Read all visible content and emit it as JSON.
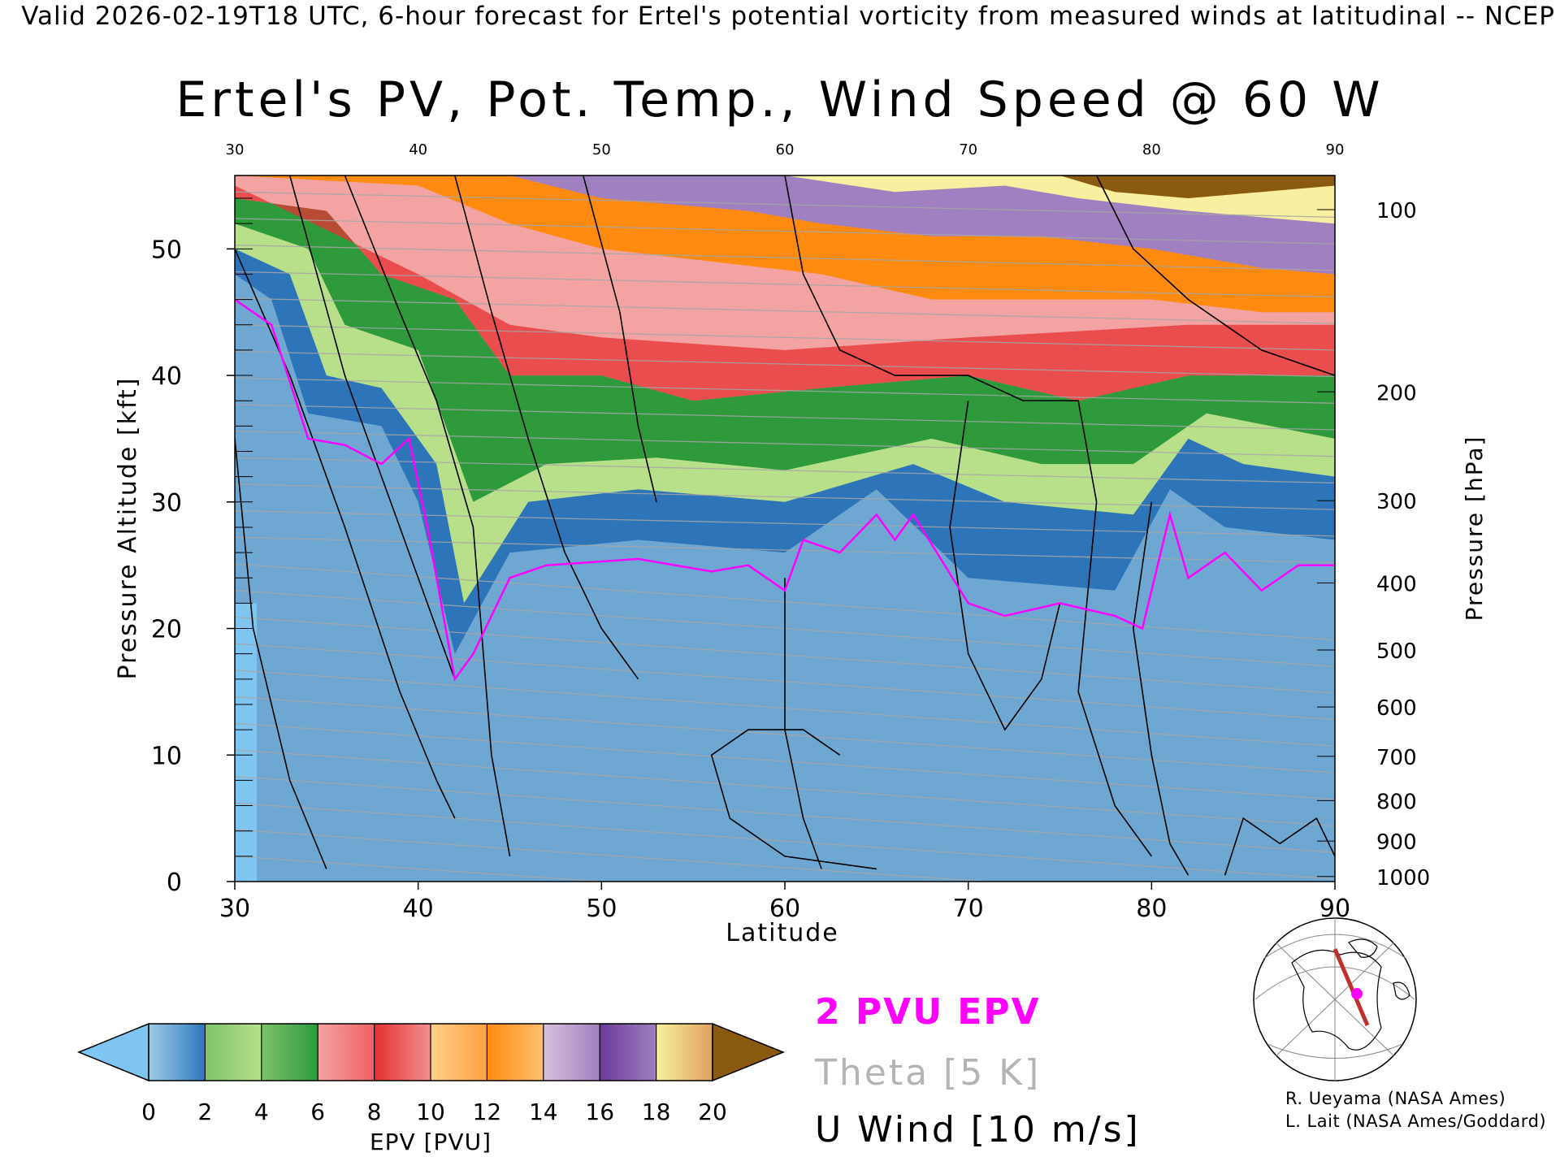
{
  "header": "Valid 2026-02-19T18 UTC, 6-hour forecast for Ertel's potential vorticity from measured winds at latitudinal -- NCEP",
  "chart_data": {
    "type": "heatmap",
    "title": "Ertel's PV, Pot. Temp., Wind Speed @ 60 W",
    "xlabel": "Latitude",
    "ylabel": "Pressure Altitude [kft]",
    "y2label": "Pressure [hPa]",
    "xlim": [
      30,
      90
    ],
    "ylim": [
      0,
      55.8
    ],
    "x_ticks": [
      30,
      40,
      50,
      60,
      70,
      80,
      90
    ],
    "top_x_ticks": [
      30,
      40,
      50,
      60,
      70,
      80,
      90
    ],
    "y_ticks": [
      0,
      10,
      20,
      30,
      40,
      50
    ],
    "pressure_ticks": [
      {
        "label": "100",
        "kft": 53.1
      },
      {
        "label": "200",
        "kft": 38.7
      },
      {
        "label": "300",
        "kft": 30.1
      },
      {
        "label": "400",
        "kft": 23.6
      },
      {
        "label": "500",
        "kft": 18.3
      },
      {
        "label": "600",
        "kft": 13.8
      },
      {
        "label": "700",
        "kft": 9.9
      },
      {
        "label": "800",
        "kft": 6.4
      },
      {
        "label": "900",
        "kft": 3.2
      },
      {
        "label": "1000",
        "kft": 0.4
      }
    ],
    "tropopause_2pvu": [
      {
        "lat": 30,
        "kft": 46
      },
      {
        "lat": 32,
        "kft": 44
      },
      {
        "lat": 34,
        "kft": 35
      },
      {
        "lat": 36,
        "kft": 34.5
      },
      {
        "lat": 38,
        "kft": 33
      },
      {
        "lat": 39.5,
        "kft": 35
      },
      {
        "lat": 40.5,
        "kft": 28
      },
      {
        "lat": 42,
        "kft": 16
      },
      {
        "lat": 43,
        "kft": 18
      },
      {
        "lat": 45,
        "kft": 24
      },
      {
        "lat": 47,
        "kft": 25
      },
      {
        "lat": 52,
        "kft": 25.5
      },
      {
        "lat": 56,
        "kft": 24.5
      },
      {
        "lat": 58,
        "kft": 25
      },
      {
        "lat": 60,
        "kft": 23
      },
      {
        "lat": 61,
        "kft": 27
      },
      {
        "lat": 63,
        "kft": 26
      },
      {
        "lat": 65,
        "kft": 29
      },
      {
        "lat": 66,
        "kft": 27
      },
      {
        "lat": 67,
        "kft": 29
      },
      {
        "lat": 70,
        "kft": 22
      },
      {
        "lat": 72,
        "kft": 21
      },
      {
        "lat": 75,
        "kft": 22
      },
      {
        "lat": 78,
        "kft": 21
      },
      {
        "lat": 79.5,
        "kft": 20
      },
      {
        "lat": 81,
        "kft": 29
      },
      {
        "lat": 82,
        "kft": 24
      },
      {
        "lat": 84,
        "kft": 26
      },
      {
        "lat": 86,
        "kft": 23
      },
      {
        "lat": 88,
        "kft": 25
      },
      {
        "lat": 90,
        "kft": 25
      }
    ],
    "epv_layers": [
      {
        "epv": 2,
        "points": [
          [
            30,
            48
          ],
          [
            32,
            46
          ],
          [
            34,
            37
          ],
          [
            38,
            36
          ],
          [
            40,
            30
          ],
          [
            42,
            18
          ],
          [
            45,
            26
          ],
          [
            52,
            27
          ],
          [
            60,
            26
          ],
          [
            65,
            31
          ],
          [
            70,
            24
          ],
          [
            78,
            23
          ],
          [
            81,
            31
          ],
          [
            84,
            28
          ],
          [
            90,
            27
          ]
        ]
      },
      {
        "epv": 4,
        "points": [
          [
            30,
            50
          ],
          [
            33,
            48
          ],
          [
            35,
            40
          ],
          [
            38,
            39
          ],
          [
            41,
            33
          ],
          [
            42.5,
            22
          ],
          [
            46,
            30
          ],
          [
            52,
            31
          ],
          [
            60,
            30
          ],
          [
            67,
            33
          ],
          [
            72,
            30
          ],
          [
            79,
            29
          ],
          [
            82,
            35
          ],
          [
            85,
            33
          ],
          [
            90,
            32
          ]
        ]
      },
      {
        "epv": 6,
        "points": [
          [
            30,
            52
          ],
          [
            34,
            50
          ],
          [
            36,
            44
          ],
          [
            40,
            42
          ],
          [
            43,
            30
          ],
          [
            47,
            33
          ],
          [
            53,
            33.5
          ],
          [
            60,
            32.5
          ],
          [
            68,
            35
          ],
          [
            74,
            33
          ],
          [
            79,
            33
          ],
          [
            83,
            37
          ],
          [
            90,
            35
          ]
        ]
      },
      {
        "epv": 8,
        "points": [
          [
            30,
            54
          ],
          [
            35,
            53
          ],
          [
            38,
            48
          ],
          [
            42,
            46
          ],
          [
            45,
            40
          ],
          [
            50,
            40
          ],
          [
            55,
            38
          ],
          [
            62,
            39
          ],
          [
            70,
            40
          ],
          [
            76,
            38
          ],
          [
            82,
            40
          ],
          [
            90,
            40
          ]
        ]
      },
      {
        "epv": 12,
        "points": [
          [
            30,
            55.8
          ],
          [
            40,
            55
          ],
          [
            45,
            52
          ],
          [
            50,
            50
          ],
          [
            56,
            49
          ],
          [
            62,
            48
          ],
          [
            68,
            46
          ],
          [
            74,
            46
          ],
          [
            80,
            46
          ],
          [
            86,
            45
          ],
          [
            90,
            45
          ]
        ]
      },
      {
        "epv": 14,
        "points": [
          [
            30,
            55.8
          ],
          [
            45,
            55.8
          ],
          [
            50,
            54
          ],
          [
            58,
            53
          ],
          [
            62,
            52
          ],
          [
            68,
            51
          ],
          [
            74,
            51
          ],
          [
            80,
            50
          ],
          [
            86,
            48.5
          ],
          [
            90,
            48
          ]
        ]
      },
      {
        "epv": 18,
        "points": [
          [
            30,
            55.8
          ],
          [
            60,
            55.8
          ],
          [
            66,
            54.5
          ],
          [
            72,
            55
          ],
          [
            76,
            54
          ],
          [
            82,
            53
          ],
          [
            86,
            52.5
          ],
          [
            90,
            52
          ]
        ]
      },
      {
        "epv": 20,
        "points": [
          [
            30,
            55.8
          ],
          [
            75,
            55.8
          ],
          [
            78,
            54.5
          ],
          [
            82,
            54
          ],
          [
            86,
            54.5
          ],
          [
            90,
            55
          ]
        ]
      }
    ],
    "wind_contours_10ms": [
      {
        "points": [
          [
            30,
            35
          ],
          [
            31,
            20
          ],
          [
            33,
            8
          ],
          [
            35,
            1
          ]
        ]
      },
      {
        "points": [
          [
            30,
            50
          ],
          [
            33,
            40
          ],
          [
            36,
            28
          ],
          [
            39,
            15
          ],
          [
            41,
            8
          ],
          [
            42,
            5
          ]
        ]
      },
      {
        "points": [
          [
            33,
            55.8
          ],
          [
            36,
            40
          ],
          [
            39,
            28
          ],
          [
            41,
            20
          ],
          [
            42,
            16
          ]
        ]
      },
      {
        "points": [
          [
            36,
            55.8
          ],
          [
            39,
            45
          ],
          [
            41,
            38
          ],
          [
            43,
            28
          ],
          [
            44,
            10
          ],
          [
            45,
            2
          ]
        ]
      },
      {
        "points": [
          [
            42,
            55.8
          ],
          [
            44,
            45
          ],
          [
            46,
            35
          ],
          [
            48,
            26
          ],
          [
            50,
            20
          ],
          [
            52,
            16
          ]
        ]
      },
      {
        "points": [
          [
            49,
            55.8
          ],
          [
            51,
            45
          ],
          [
            52,
            36
          ],
          [
            53,
            30
          ]
        ]
      },
      {
        "points": [
          [
            60,
            55.8
          ],
          [
            61,
            48
          ],
          [
            63,
            42
          ],
          [
            66,
            40
          ],
          [
            70,
            40
          ],
          [
            73,
            38
          ],
          [
            76,
            38
          ],
          [
            77,
            30
          ],
          [
            76,
            15
          ],
          [
            78,
            6
          ],
          [
            80,
            2
          ]
        ]
      },
      {
        "points": [
          [
            70,
            38
          ],
          [
            69,
            28
          ],
          [
            70,
            18
          ],
          [
            72,
            12
          ],
          [
            74,
            16
          ],
          [
            75,
            22
          ]
        ]
      },
      {
        "points": [
          [
            60,
            24
          ],
          [
            60,
            12
          ],
          [
            61,
            5
          ],
          [
            62,
            1
          ]
        ]
      },
      {
        "points": [
          [
            63,
            10
          ],
          [
            61,
            12
          ],
          [
            58,
            12
          ],
          [
            56,
            10
          ],
          [
            57,
            5
          ],
          [
            60,
            2
          ],
          [
            65,
            1
          ]
        ]
      },
      {
        "points": [
          [
            77,
            55.8
          ],
          [
            79,
            50
          ],
          [
            82,
            46
          ],
          [
            86,
            42
          ],
          [
            90,
            40
          ]
        ]
      },
      {
        "points": [
          [
            80,
            30
          ],
          [
            79,
            20
          ],
          [
            80,
            10
          ],
          [
            81,
            3
          ],
          [
            82,
            0.5
          ]
        ]
      },
      {
        "points": [
          [
            84,
            0.5
          ],
          [
            85,
            5
          ],
          [
            87,
            3
          ],
          [
            89,
            5
          ],
          [
            90,
            2
          ]
        ]
      }
    ],
    "colorbar": {
      "label": "EPV [PVU]",
      "ticks": [
        "0",
        "2",
        "4",
        "6",
        "8",
        "10",
        "12",
        "14",
        "16",
        "18",
        "20"
      ]
    },
    "legend": [
      {
        "label": "2 PVU EPV",
        "color": "#ff00ff"
      },
      {
        "label": "Theta [5 K]",
        "color": "#b4b4b4"
      },
      {
        "label": "U Wind [10 m/s]",
        "color": "#000000"
      }
    ],
    "section_map": {
      "label": "cross-section location map"
    }
  },
  "credits": [
    "R. Ueyama (NASA Ames)",
    "L. Lait (NASA Ames/Goddard)"
  ]
}
